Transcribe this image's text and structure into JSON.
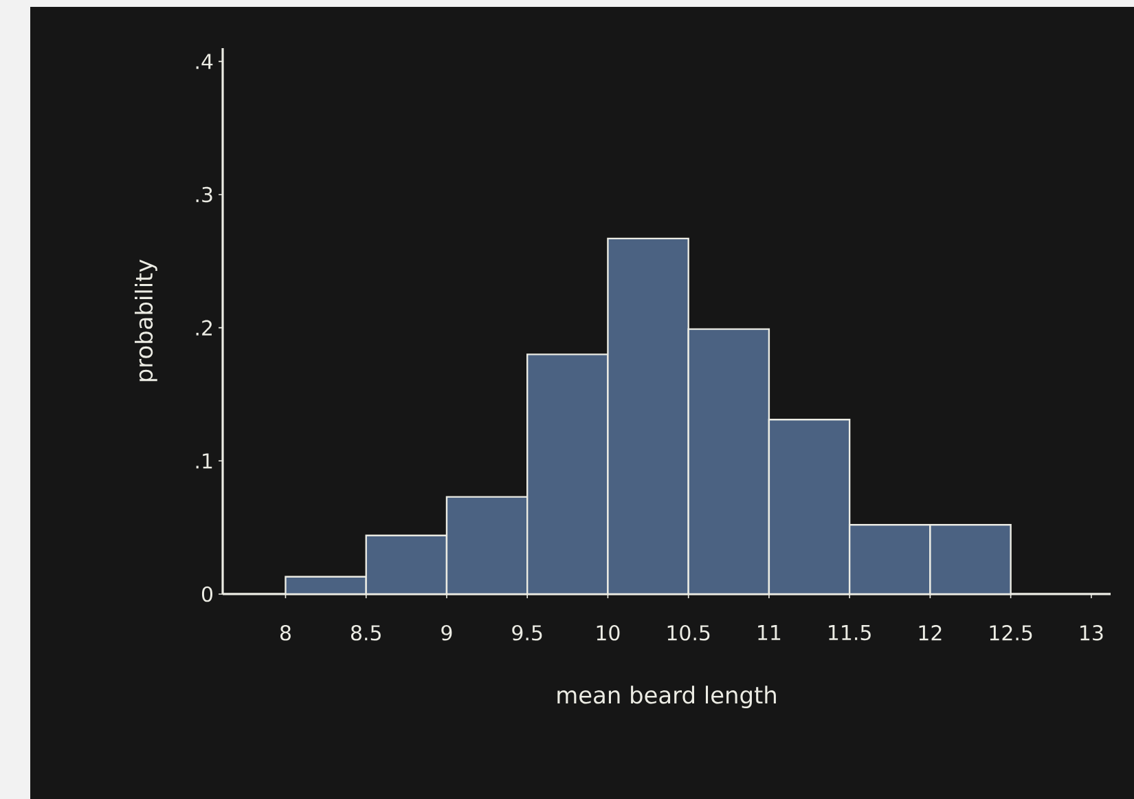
{
  "chart_data": {
    "type": "histogram",
    "xlabel": "mean beard length",
    "ylabel": "probability",
    "bins": [
      8,
      8.5,
      9,
      9.5,
      10,
      10.5,
      11,
      11.5,
      12,
      12.5
    ],
    "values": [
      0.013,
      0.044,
      0.073,
      0.18,
      0.267,
      0.199,
      0.131,
      0.052,
      0.052
    ],
    "color": "#4b6282",
    "xlim": [
      7.61,
      13.12
    ],
    "ylim": [
      0,
      0.41
    ],
    "xticks": [
      8,
      8.5,
      9,
      9.5,
      10,
      10.5,
      11,
      11.5,
      12,
      12.5,
      13
    ],
    "yticks": [
      0,
      {
        "value": 0.1,
        "label": ".1"
      },
      {
        "value": 0.2,
        "label": ".2"
      },
      {
        "value": 0.3,
        "label": ".3"
      },
      {
        "value": 0.4,
        "label": ".4"
      }
    ]
  }
}
